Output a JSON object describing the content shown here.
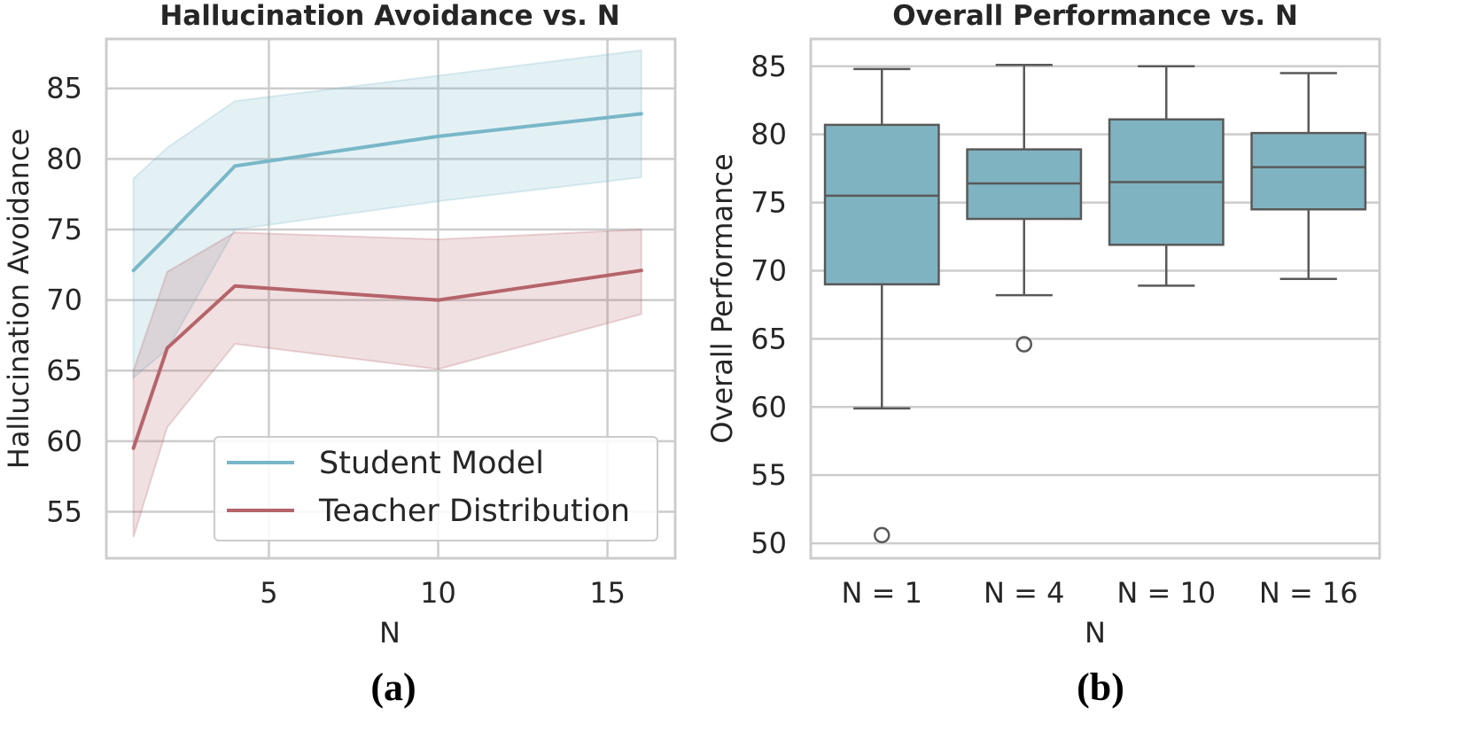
{
  "chart_data": [
    {
      "type": "line",
      "panel_label": "(a)",
      "title": "Hallucination Avoidance vs. N",
      "xlabel": "N",
      "ylabel": "Hallucination Avoidance",
      "xlim": [
        0.2,
        17
      ],
      "ylim": [
        51.7,
        88.5
      ],
      "xticks": [
        5,
        10,
        15
      ],
      "yticks": [
        55,
        60,
        65,
        70,
        75,
        80,
        85
      ],
      "grid": true,
      "legend_position": "lower-right",
      "series": [
        {
          "name": "Student Model",
          "color": "#78b7c8",
          "x": [
            1,
            2,
            4,
            10,
            16
          ],
          "y": [
            72.1,
            74.5,
            79.5,
            81.6,
            83.2
          ],
          "lower": [
            64.5,
            66.5,
            75.0,
            77.0,
            78.7
          ],
          "upper": [
            78.6,
            80.8,
            84.1,
            85.9,
            87.7
          ]
        },
        {
          "name": "Teacher Distribution",
          "color": "#b5646a",
          "x": [
            1,
            2,
            4,
            10,
            16
          ],
          "y": [
            59.5,
            66.6,
            71.0,
            70.0,
            72.1
          ],
          "lower": [
            53.2,
            61.0,
            66.9,
            65.1,
            69.0
          ],
          "upper": [
            65.0,
            72.0,
            74.8,
            74.3,
            75.0
          ]
        }
      ]
    },
    {
      "type": "box",
      "panel_label": "(b)",
      "title": "Overall Performance vs. N",
      "xlabel": "N",
      "ylabel": "Overall Performance",
      "ylim": [
        48.9,
        87
      ],
      "yticks": [
        50,
        55,
        60,
        65,
        70,
        75,
        80,
        85
      ],
      "grid": true,
      "box_color": "#80b3c2",
      "categories": [
        "N = 1",
        "N = 4",
        "N = 10",
        "N = 16"
      ],
      "boxes": [
        {
          "whisker_low": 59.9,
          "q1": 69.0,
          "median": 75.5,
          "q3": 80.7,
          "whisker_high": 84.8,
          "outliers": [
            50.6
          ]
        },
        {
          "whisker_low": 68.2,
          "q1": 73.8,
          "median": 76.4,
          "q3": 78.9,
          "whisker_high": 85.1,
          "outliers": [
            64.6
          ]
        },
        {
          "whisker_low": 68.9,
          "q1": 71.9,
          "median": 76.5,
          "q3": 81.1,
          "whisker_high": 85.0,
          "outliers": []
        },
        {
          "whisker_low": 69.4,
          "q1": 74.5,
          "median": 77.6,
          "q3": 80.1,
          "whisker_high": 84.5,
          "outliers": []
        }
      ]
    }
  ]
}
